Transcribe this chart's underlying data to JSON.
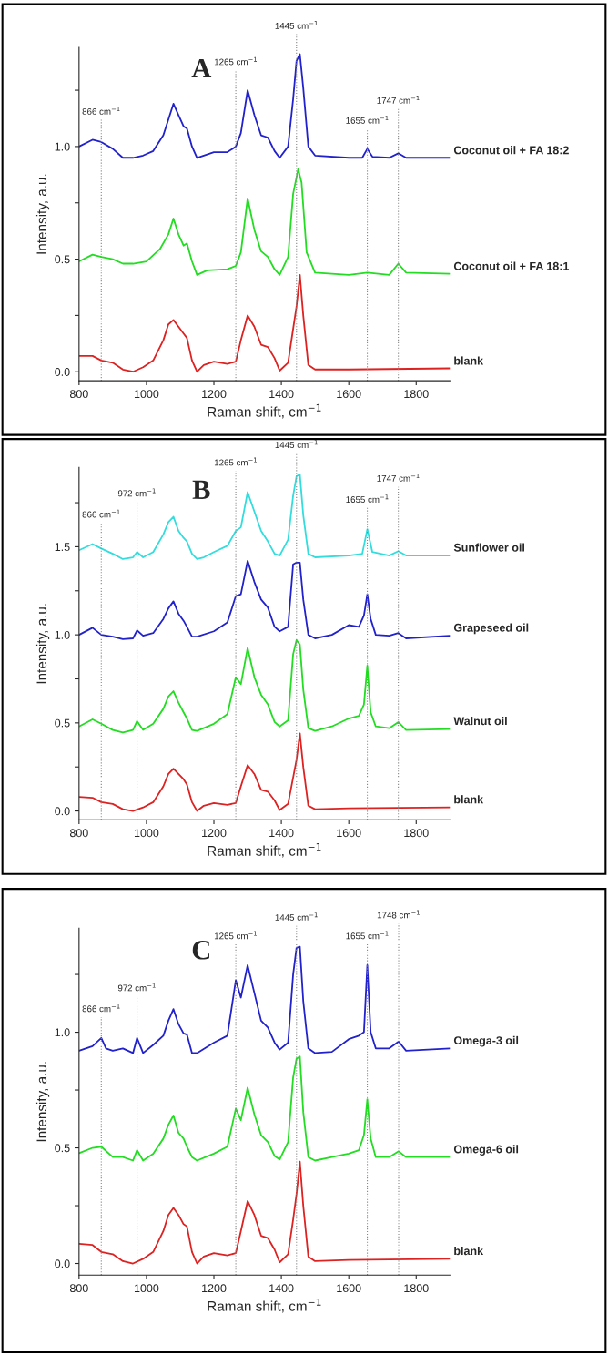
{
  "chart_data": [
    {
      "type": "line",
      "xlabel": "Raman shift, cm$^{−1}$",
      "ylabel": "Intensity, a.u.",
      "xlim": [
        800,
        1900
      ],
      "xticks": [
        800,
        1000,
        1200,
        1400,
        1600,
        1800
      ],
      "ylim": [
        -0.04,
        1.44
      ],
      "yticks": [
        {
          "value": 0,
          "label": "0.0"
        },
        {
          "value": 0.25,
          "label": null
        },
        {
          "value": 0.5,
          "label": "0.5"
        },
        {
          "value": 0.75,
          "label": null
        },
        {
          "value": 1,
          "label": "1.0"
        },
        {
          "value": 1.25,
          "label": null
        }
      ],
      "annotations": [
        "A"
      ],
      "ref_lines": [
        {
          "axis": "x",
          "value": 866,
          "label": "866 cm$^{−1}$",
          "color": "#888888",
          "line_style": "dotted"
        },
        {
          "axis": "x",
          "value": 1265,
          "label": "1265 cm$^{−1}$",
          "color": "#888888",
          "line_style": "dotted"
        },
        {
          "axis": "x",
          "value": 1445,
          "label": "1445 cm$^{−1}$",
          "color": "#888888",
          "line_style": "dotted"
        },
        {
          "axis": "x",
          "value": 1655,
          "label": "1655 cm$^{−1}$",
          "color": "#888888",
          "line_style": "dotted"
        },
        {
          "axis": "x",
          "value": 1747,
          "label": "1747 cm$^{−1}$",
          "color": "#888888",
          "line_style": "dotted"
        }
      ],
      "series": [
        {
          "name": "Coconut oil + FA 18:2",
          "color": "#2222cc",
          "x": [
            800,
            840,
            866,
            900,
            930,
            960,
            990,
            1020,
            1050,
            1065,
            1080,
            1095,
            1110,
            1120,
            1135,
            1150,
            1170,
            1200,
            1240,
            1265,
            1280,
            1300,
            1320,
            1340,
            1360,
            1380,
            1395,
            1420,
            1435,
            1445,
            1455,
            1465,
            1480,
            1500,
            1600,
            1640,
            1655,
            1670,
            1720,
            1747,
            1770,
            1900
          ],
          "values": [
            1.0,
            1.03,
            1.02,
            0.99,
            0.95,
            0.95,
            0.96,
            0.98,
            1.05,
            1.12,
            1.19,
            1.14,
            1.09,
            1.08,
            1.0,
            0.95,
            0.96,
            0.975,
            0.975,
            1.0,
            1.06,
            1.25,
            1.14,
            1.05,
            1.04,
            0.98,
            0.95,
            1.0,
            1.21,
            1.38,
            1.41,
            1.26,
            1.0,
            0.96,
            0.95,
            0.95,
            0.99,
            0.955,
            0.95,
            0.97,
            0.95,
            0.95
          ]
        },
        {
          "name": "Coconut oil + FA 18:1",
          "color": "#22dd22",
          "x": [
            800,
            840,
            866,
            900,
            930,
            960,
            1000,
            1040,
            1065,
            1080,
            1095,
            1110,
            1120,
            1135,
            1150,
            1180,
            1240,
            1265,
            1280,
            1300,
            1320,
            1340,
            1360,
            1380,
            1395,
            1420,
            1435,
            1450,
            1460,
            1475,
            1500,
            1600,
            1655,
            1720,
            1747,
            1770,
            1900
          ],
          "values": [
            0.49,
            0.52,
            0.51,
            0.5,
            0.48,
            0.48,
            0.49,
            0.545,
            0.61,
            0.68,
            0.61,
            0.56,
            0.57,
            0.49,
            0.43,
            0.45,
            0.455,
            0.47,
            0.53,
            0.77,
            0.63,
            0.535,
            0.51,
            0.455,
            0.43,
            0.51,
            0.79,
            0.9,
            0.84,
            0.53,
            0.44,
            0.43,
            0.44,
            0.43,
            0.48,
            0.44,
            0.435
          ]
        },
        {
          "name": "blank",
          "color": "#dd2222",
          "x": [
            800,
            840,
            866,
            900,
            930,
            960,
            990,
            1020,
            1050,
            1065,
            1080,
            1095,
            1110,
            1120,
            1135,
            1150,
            1170,
            1200,
            1240,
            1265,
            1280,
            1300,
            1320,
            1340,
            1360,
            1380,
            1395,
            1420,
            1435,
            1445,
            1455,
            1465,
            1480,
            1500,
            1600,
            1900
          ],
          "values": [
            0.07,
            0.07,
            0.05,
            0.04,
            0.01,
            0.0,
            0.02,
            0.05,
            0.14,
            0.21,
            0.23,
            0.2,
            0.17,
            0.15,
            0.05,
            0.0,
            0.03,
            0.045,
            0.035,
            0.045,
            0.14,
            0.25,
            0.2,
            0.12,
            0.11,
            0.06,
            0.005,
            0.04,
            0.19,
            0.29,
            0.43,
            0.25,
            0.03,
            0.01,
            0.01,
            0.015
          ]
        }
      ]
    },
    {
      "type": "line",
      "xlabel": "Raman shift, cm$^{−1}$",
      "ylabel": "Intensity, a.u.",
      "xlim": [
        800,
        1900
      ],
      "xticks": [
        800,
        1000,
        1200,
        1400,
        1600,
        1800
      ],
      "ylim": [
        -0.05,
        1.95
      ],
      "yticks": [
        {
          "value": 0,
          "label": "0.0"
        },
        {
          "value": 0.25,
          "label": null
        },
        {
          "value": 0.5,
          "label": "0.5"
        },
        {
          "value": 0.75,
          "label": null
        },
        {
          "value": 1,
          "label": "1.0"
        },
        {
          "value": 1.25,
          "label": null
        },
        {
          "value": 1.5,
          "label": "1.5"
        },
        {
          "value": 1.75,
          "label": null
        }
      ],
      "annotations": [
        "B"
      ],
      "ref_lines": [
        {
          "axis": "x",
          "value": 866,
          "label": "866 cm$^{−1}$",
          "color": "#888888",
          "line_style": "dotted"
        },
        {
          "axis": "x",
          "value": 972,
          "label": "972 cm$^{−1}$",
          "color": "#888888",
          "line_style": "dotted"
        },
        {
          "axis": "x",
          "value": 1265,
          "label": "1265 cm$^{−1}$",
          "color": "#888888",
          "line_style": "dotted"
        },
        {
          "axis": "x",
          "value": 1445,
          "label": "1445 cm$^{−1}$",
          "color": "#888888",
          "line_style": "dotted"
        },
        {
          "axis": "x",
          "value": 1655,
          "label": "1655 cm$^{−1}$",
          "color": "#888888",
          "line_style": "dotted"
        },
        {
          "axis": "x",
          "value": 1747,
          "label": "1747 cm$^{−1}$",
          "color": "#888888",
          "line_style": "dotted"
        }
      ],
      "series": [
        {
          "name": "Sunflower oil",
          "color": "#33dddd",
          "x": [
            800,
            840,
            866,
            900,
            930,
            960,
            972,
            990,
            1020,
            1050,
            1065,
            1080,
            1095,
            1110,
            1120,
            1135,
            1150,
            1170,
            1200,
            1240,
            1265,
            1280,
            1300,
            1320,
            1340,
            1360,
            1380,
            1395,
            1420,
            1435,
            1445,
            1455,
            1465,
            1480,
            1500,
            1600,
            1640,
            1655,
            1670,
            1720,
            1747,
            1770,
            1900
          ],
          "values": [
            1.48,
            1.515,
            1.49,
            1.46,
            1.43,
            1.44,
            1.47,
            1.44,
            1.47,
            1.57,
            1.64,
            1.67,
            1.59,
            1.55,
            1.53,
            1.46,
            1.43,
            1.44,
            1.47,
            1.505,
            1.59,
            1.61,
            1.81,
            1.7,
            1.59,
            1.53,
            1.46,
            1.45,
            1.54,
            1.79,
            1.9,
            1.91,
            1.68,
            1.46,
            1.44,
            1.45,
            1.46,
            1.6,
            1.47,
            1.45,
            1.475,
            1.45,
            1.45
          ]
        },
        {
          "name": "Grapeseed oil",
          "color": "#2222cc",
          "x": [
            800,
            840,
            866,
            900,
            930,
            960,
            972,
            990,
            1020,
            1050,
            1065,
            1080,
            1095,
            1110,
            1120,
            1135,
            1150,
            1200,
            1240,
            1265,
            1280,
            1300,
            1320,
            1340,
            1360,
            1380,
            1395,
            1420,
            1435,
            1445,
            1455,
            1465,
            1480,
            1500,
            1550,
            1600,
            1630,
            1645,
            1655,
            1665,
            1680,
            1720,
            1747,
            1770,
            1900
          ],
          "values": [
            1.0,
            1.04,
            1.0,
            0.99,
            0.975,
            0.98,
            1.025,
            0.995,
            1.01,
            1.09,
            1.15,
            1.19,
            1.12,
            1.08,
            1.045,
            0.99,
            0.99,
            1.02,
            1.07,
            1.22,
            1.23,
            1.42,
            1.3,
            1.2,
            1.155,
            1.045,
            1.02,
            1.045,
            1.4,
            1.41,
            1.41,
            1.2,
            1.0,
            0.98,
            1.0,
            1.055,
            1.045,
            1.11,
            1.23,
            1.09,
            1.0,
            0.995,
            1.01,
            0.98,
            0.995
          ]
        },
        {
          "name": "Walnut oil",
          "color": "#22dd22",
          "x": [
            800,
            840,
            866,
            900,
            930,
            960,
            972,
            990,
            1020,
            1050,
            1065,
            1080,
            1095,
            1110,
            1120,
            1135,
            1150,
            1200,
            1240,
            1265,
            1280,
            1300,
            1320,
            1340,
            1360,
            1380,
            1395,
            1420,
            1435,
            1445,
            1455,
            1465,
            1480,
            1500,
            1550,
            1600,
            1630,
            1645,
            1655,
            1665,
            1680,
            1720,
            1747,
            1770,
            1900
          ],
          "values": [
            0.48,
            0.52,
            0.495,
            0.46,
            0.445,
            0.46,
            0.51,
            0.46,
            0.495,
            0.58,
            0.65,
            0.68,
            0.615,
            0.56,
            0.525,
            0.46,
            0.455,
            0.495,
            0.55,
            0.76,
            0.72,
            0.925,
            0.76,
            0.66,
            0.605,
            0.505,
            0.48,
            0.515,
            0.89,
            0.97,
            0.945,
            0.69,
            0.47,
            0.455,
            0.48,
            0.525,
            0.54,
            0.605,
            0.825,
            0.56,
            0.48,
            0.47,
            0.505,
            0.46,
            0.465
          ]
        },
        {
          "name": "blank",
          "color": "#dd2222",
          "x": [
            800,
            840,
            866,
            900,
            930,
            960,
            990,
            1020,
            1050,
            1065,
            1080,
            1095,
            1110,
            1120,
            1135,
            1150,
            1170,
            1200,
            1240,
            1265,
            1280,
            1300,
            1320,
            1340,
            1360,
            1380,
            1395,
            1420,
            1435,
            1445,
            1455,
            1465,
            1480,
            1500,
            1600,
            1900
          ],
          "values": [
            0.08,
            0.075,
            0.05,
            0.04,
            0.01,
            0.0,
            0.02,
            0.05,
            0.14,
            0.21,
            0.24,
            0.21,
            0.18,
            0.15,
            0.05,
            0.0,
            0.03,
            0.045,
            0.035,
            0.045,
            0.14,
            0.26,
            0.21,
            0.12,
            0.11,
            0.06,
            0.005,
            0.04,
            0.19,
            0.29,
            0.44,
            0.25,
            0.03,
            0.01,
            0.015,
            0.02
          ]
        }
      ]
    },
    {
      "type": "line",
      "xlabel": "Raman shift, cm$^{−1}$",
      "ylabel": "Intensity, a.u.",
      "xlim": [
        800,
        1900
      ],
      "xticks": [
        800,
        1000,
        1200,
        1400,
        1600,
        1800
      ],
      "ylim": [
        -0.05,
        1.45
      ],
      "yticks": [
        {
          "value": 0,
          "label": "0.0"
        },
        {
          "value": 0.25,
          "label": null
        },
        {
          "value": 0.5,
          "label": "0.5"
        },
        {
          "value": 0.75,
          "label": null
        },
        {
          "value": 1,
          "label": "1.0"
        },
        {
          "value": 1.25,
          "label": null
        }
      ],
      "annotations": [
        "C"
      ],
      "ref_lines": [
        {
          "axis": "x",
          "value": 866,
          "label": "866 cm$^{−1}$",
          "color": "#888888",
          "line_style": "dotted"
        },
        {
          "axis": "x",
          "value": 972,
          "label": "972 cm$^{−1}$",
          "color": "#888888",
          "line_style": "dotted"
        },
        {
          "axis": "x",
          "value": 1265,
          "label": "1265 cm$^{−1}$",
          "color": "#888888",
          "line_style": "dotted"
        },
        {
          "axis": "x",
          "value": 1445,
          "label": "1445 cm$^{−1}$",
          "color": "#888888",
          "line_style": "dotted"
        },
        {
          "axis": "x",
          "value": 1655,
          "label": "1655 cm$^{−1}$",
          "color": "#888888",
          "line_style": "dotted"
        },
        {
          "axis": "x",
          "value": 1748,
          "label": "1748 cm$^{−1}$",
          "color": "#888888",
          "line_style": "dotted"
        }
      ],
      "series": [
        {
          "name": "Omega-3 oil",
          "color": "#2222cc",
          "x": [
            800,
            840,
            866,
            880,
            900,
            930,
            960,
            972,
            990,
            1020,
            1050,
            1065,
            1080,
            1095,
            1110,
            1120,
            1135,
            1150,
            1200,
            1240,
            1265,
            1280,
            1300,
            1320,
            1340,
            1360,
            1380,
            1395,
            1420,
            1435,
            1445,
            1455,
            1465,
            1480,
            1500,
            1550,
            1600,
            1630,
            1645,
            1655,
            1665,
            1680,
            1720,
            1748,
            1770,
            1900
          ],
          "values": [
            0.92,
            0.94,
            0.975,
            0.93,
            0.92,
            0.93,
            0.91,
            0.975,
            0.91,
            0.945,
            0.985,
            1.05,
            1.1,
            1.035,
            0.995,
            0.99,
            0.91,
            0.91,
            0.955,
            0.985,
            1.225,
            1.15,
            1.29,
            1.17,
            1.05,
            1.02,
            0.955,
            0.925,
            0.955,
            1.25,
            1.365,
            1.37,
            1.135,
            0.93,
            0.91,
            0.915,
            0.97,
            0.985,
            1.0,
            1.29,
            1.0,
            0.93,
            0.93,
            0.96,
            0.92,
            0.93
          ]
        },
        {
          "name": "Omega-6 oil",
          "color": "#22dd22",
          "x": [
            800,
            840,
            866,
            900,
            930,
            960,
            972,
            990,
            1020,
            1050,
            1065,
            1080,
            1095,
            1110,
            1120,
            1135,
            1150,
            1200,
            1240,
            1265,
            1280,
            1300,
            1320,
            1340,
            1360,
            1380,
            1395,
            1420,
            1435,
            1445,
            1455,
            1465,
            1480,
            1500,
            1550,
            1600,
            1630,
            1645,
            1655,
            1665,
            1680,
            1720,
            1748,
            1770,
            1900
          ],
          "values": [
            0.477,
            0.5,
            0.505,
            0.46,
            0.46,
            0.445,
            0.49,
            0.445,
            0.475,
            0.54,
            0.6,
            0.64,
            0.565,
            0.54,
            0.505,
            0.46,
            0.445,
            0.475,
            0.505,
            0.67,
            0.62,
            0.76,
            0.645,
            0.555,
            0.525,
            0.465,
            0.45,
            0.525,
            0.805,
            0.885,
            0.895,
            0.655,
            0.46,
            0.445,
            0.46,
            0.475,
            0.49,
            0.555,
            0.71,
            0.54,
            0.46,
            0.46,
            0.485,
            0.46,
            0.46
          ]
        },
        {
          "name": "blank",
          "color": "#dd2222",
          "x": [
            800,
            840,
            866,
            900,
            930,
            960,
            990,
            1020,
            1050,
            1065,
            1080,
            1095,
            1110,
            1120,
            1135,
            1150,
            1170,
            1200,
            1240,
            1265,
            1280,
            1300,
            1320,
            1340,
            1360,
            1380,
            1395,
            1420,
            1435,
            1445,
            1455,
            1465,
            1480,
            1500,
            1600,
            1900
          ],
          "values": [
            0.085,
            0.08,
            0.05,
            0.04,
            0.01,
            0.0,
            0.02,
            0.05,
            0.14,
            0.21,
            0.24,
            0.21,
            0.17,
            0.16,
            0.05,
            0.0,
            0.03,
            0.045,
            0.035,
            0.045,
            0.14,
            0.27,
            0.21,
            0.12,
            0.11,
            0.06,
            0.005,
            0.04,
            0.19,
            0.3,
            0.44,
            0.25,
            0.03,
            0.01,
            0.015,
            0.02
          ]
        }
      ]
    }
  ]
}
